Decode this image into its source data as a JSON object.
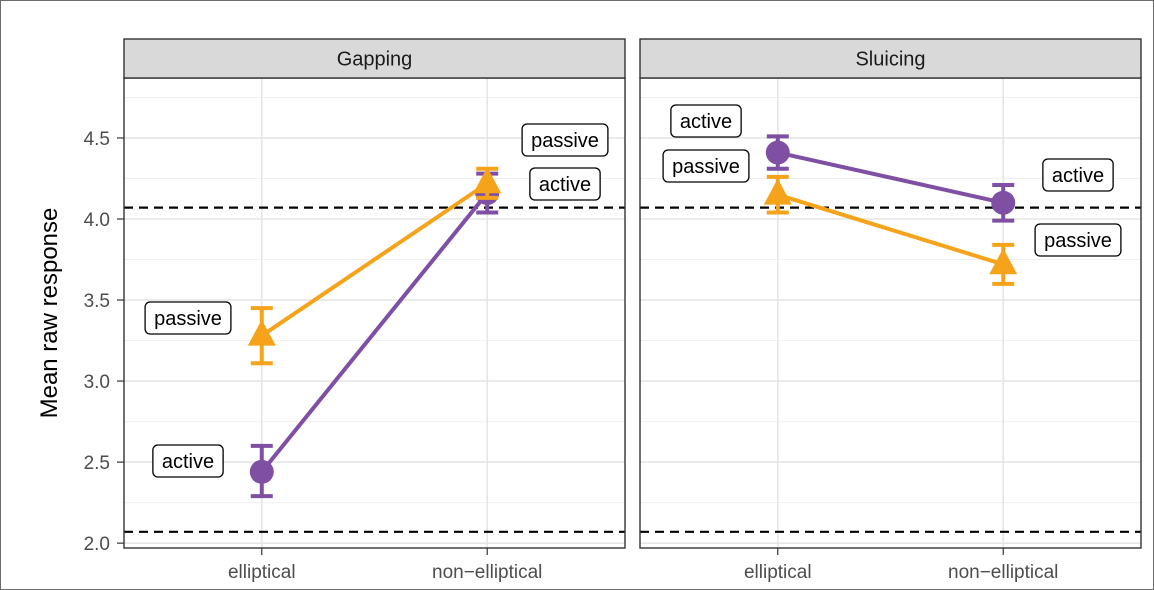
{
  "chart_data": {
    "type": "line",
    "ylabel": "Mean raw response",
    "xlabel": "",
    "ylim": [
      1.97,
      4.87
    ],
    "y_ticks": [
      "2.0",
      "2.5",
      "3.0",
      "3.5",
      "4.0",
      "4.5"
    ],
    "x_categories": [
      "elliptical",
      "non−elliptical"
    ],
    "reference_lines": [
      2.07,
      4.07
    ],
    "colors": {
      "active": "#7E4FA3",
      "passive": "#F5A31A"
    },
    "panels": [
      {
        "title": "Gapping",
        "series": [
          {
            "group": "active",
            "marker": "circle",
            "values": [
              2.44,
              4.16
            ],
            "err_low": [
              2.29,
              4.04
            ],
            "err_high": [
              2.6,
              4.28
            ],
            "labels": [
              "active",
              "active"
            ]
          },
          {
            "group": "passive",
            "marker": "triangle",
            "values": [
              3.28,
              4.22
            ],
            "err_low": [
              3.11,
              4.13
            ],
            "err_high": [
              3.45,
              4.31
            ],
            "labels": [
              "passive",
              "passive"
            ]
          }
        ]
      },
      {
        "title": "Sluicing",
        "series": [
          {
            "group": "active",
            "marker": "circle",
            "values": [
              4.41,
              4.1
            ],
            "err_low": [
              4.31,
              3.99
            ],
            "err_high": [
              4.51,
              4.21
            ],
            "labels": [
              "active",
              "active"
            ]
          },
          {
            "group": "passive",
            "marker": "triangle",
            "values": [
              4.15,
              3.72
            ],
            "err_low": [
              4.04,
              3.6
            ],
            "err_high": [
              4.26,
              3.84
            ],
            "labels": [
              "passive",
              "passive"
            ]
          }
        ]
      }
    ]
  }
}
